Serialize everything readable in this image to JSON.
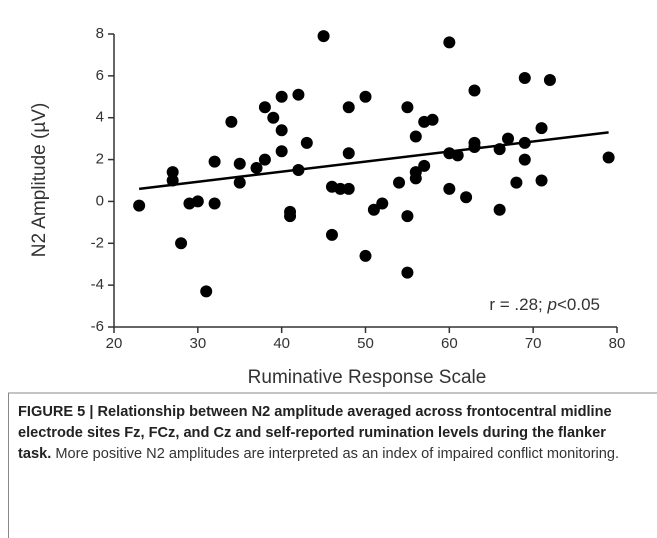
{
  "chart_data": {
    "type": "scatter",
    "x_label": "Ruminative Response Scale",
    "y_label": "N2 Amplitude (µV)",
    "annotation": {
      "pre": "r = .28; ",
      "italic": "p",
      "post": "<0.05"
    },
    "x": [
      23,
      27,
      27,
      28,
      29,
      30,
      31,
      32,
      32,
      34,
      35,
      35,
      37,
      38,
      38,
      39,
      40,
      40,
      40,
      41,
      41,
      42,
      42,
      43,
      45,
      46,
      46,
      47,
      48,
      48,
      48,
      50,
      50,
      51,
      52,
      54,
      55,
      55,
      55,
      56,
      56,
      56,
      57,
      57,
      58,
      60,
      60,
      60,
      61,
      62,
      63,
      63,
      63,
      66,
      66,
      67,
      68,
      69,
      69,
      69,
      71,
      71,
      72,
      79
    ],
    "values": [
      -0.2,
      1.4,
      1.0,
      -2.0,
      -0.1,
      0.0,
      -4.3,
      1.9,
      -0.1,
      3.8,
      1.8,
      0.9,
      1.6,
      4.5,
      2.0,
      4.0,
      5.0,
      3.4,
      2.4,
      -0.5,
      -0.7,
      5.1,
      1.5,
      2.8,
      7.9,
      0.7,
      -1.6,
      0.6,
      4.5,
      2.3,
      0.6,
      5.0,
      -2.6,
      -0.4,
      -0.1,
      0.9,
      4.5,
      -0.7,
      -3.4,
      3.1,
      1.4,
      1.1,
      3.8,
      1.7,
      3.9,
      7.6,
      2.3,
      0.6,
      2.2,
      0.2,
      5.3,
      2.8,
      2.6,
      2.5,
      -0.4,
      3.0,
      0.9,
      5.9,
      2.8,
      2.0,
      3.5,
      1.0,
      5.8,
      2.1
    ],
    "color": "#000000",
    "trendline": {
      "x": [
        23,
        79
      ],
      "y": [
        0.6,
        3.3
      ]
    },
    "xlim": [
      20,
      80
    ],
    "xticks": [
      20,
      30,
      40,
      50,
      60,
      70,
      80
    ],
    "ylim": [
      -6,
      8
    ],
    "yticks": [
      -6,
      -4,
      -2,
      0,
      2,
      4,
      6,
      8
    ]
  },
  "caption": {
    "bold": "FIGURE 5 | Relationship between N2 amplitude averaged across frontocentral midline electrode sites Fz, FCz, and Cz and self-reported rumination levels during the flanker task.",
    "text": "More positive N2 amplitudes are interpreted as an index of impaired conflict monitoring."
  }
}
